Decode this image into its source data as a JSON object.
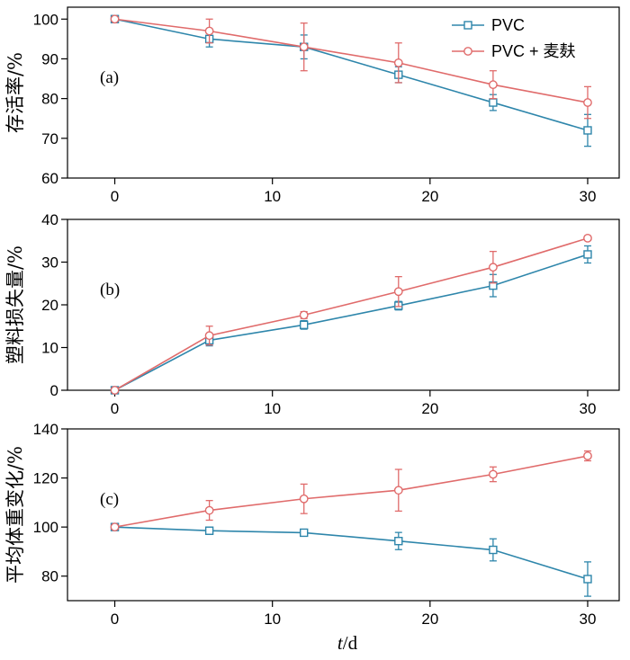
{
  "chart_data": [
    {
      "type": "line",
      "panel_label": "(a)",
      "ylabel": "存活率/%",
      "xlabel": "",
      "x": [
        0,
        6,
        12,
        18,
        24,
        30
      ],
      "xlim": [
        -3,
        32
      ],
      "ylim": [
        60,
        103
      ],
      "xticks": [
        0,
        10,
        20,
        30
      ],
      "yticks": [
        60,
        70,
        80,
        90,
        100
      ],
      "legend": "top-right",
      "series": [
        {
          "name": "PVC",
          "color": "#2e86ab",
          "marker": "square",
          "values": [
            100,
            95,
            93,
            86,
            79,
            72
          ],
          "errors": [
            0,
            2,
            3,
            2,
            2,
            4
          ]
        },
        {
          "name": "PVC + 麦麸",
          "color": "#e06b6b",
          "marker": "circle",
          "values": [
            100,
            97,
            93,
            89,
            83.5,
            79
          ],
          "errors": [
            0,
            3,
            6,
            5,
            3.5,
            4
          ]
        }
      ]
    },
    {
      "type": "line",
      "panel_label": "(b)",
      "ylabel": "塑料损失量/%",
      "xlabel": "",
      "x": [
        0,
        6,
        12,
        18,
        24,
        30
      ],
      "xlim": [
        -3,
        32
      ],
      "ylim": [
        0,
        40
      ],
      "xticks": [
        0,
        10,
        20,
        30
      ],
      "yticks": [
        0,
        10,
        20,
        30,
        40
      ],
      "series": [
        {
          "name": "PVC",
          "color": "#2e86ab",
          "marker": "square",
          "values": [
            0,
            11.7,
            15.3,
            19.8,
            24.5,
            31.8
          ],
          "errors": [
            0,
            1.3,
            1.0,
            1.0,
            2.6,
            2.0
          ]
        },
        {
          "name": "PVC + 麦麸",
          "color": "#e06b6b",
          "marker": "circle",
          "values": [
            0,
            12.8,
            17.6,
            23.1,
            28.8,
            35.6
          ],
          "errors": [
            0,
            2.2,
            0.8,
            3.5,
            3.7,
            0.5
          ]
        }
      ]
    },
    {
      "type": "line",
      "panel_label": "(c)",
      "ylabel": "平均体重变化/%",
      "xlabel": "t/d",
      "x": [
        0,
        6,
        12,
        18,
        24,
        30
      ],
      "xlim": [
        -3,
        32
      ],
      "ylim": [
        70,
        140
      ],
      "xticks": [
        0,
        10,
        20,
        30
      ],
      "yticks": [
        80,
        100,
        120,
        140
      ],
      "series": [
        {
          "name": "PVC",
          "color": "#2e86ab",
          "marker": "square",
          "values": [
            100,
            98.5,
            97.7,
            94.3,
            90.7,
            78.8
          ],
          "errors": [
            0,
            1.5,
            1.0,
            3.5,
            4.5,
            7.0
          ]
        },
        {
          "name": "PVC + 麦麸",
          "color": "#e06b6b",
          "marker": "circle",
          "values": [
            100,
            106.8,
            111.5,
            115.0,
            121.5,
            129.0
          ],
          "errors": [
            0,
            4.0,
            6.0,
            8.5,
            3.0,
            2.0
          ]
        }
      ]
    }
  ]
}
